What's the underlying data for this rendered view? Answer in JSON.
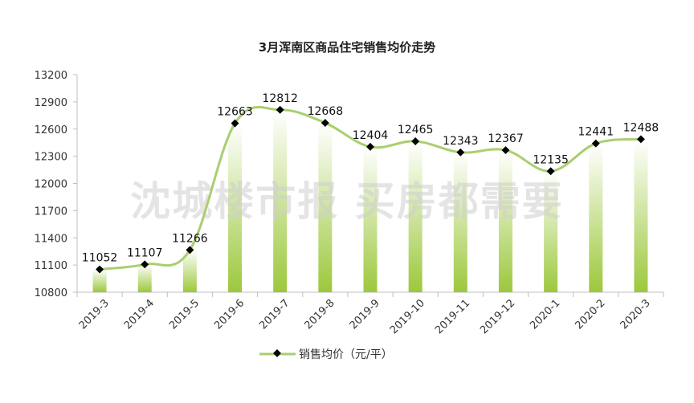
{
  "chart_data": {
    "type": "line",
    "title": "3月浑南区商品住宅销售均价走势",
    "categories": [
      "2019-3",
      "2019-4",
      "2019-5",
      "2019-6",
      "2019-7",
      "2019-8",
      "2019-9",
      "2019-10",
      "2019-11",
      "2019-12",
      "2020-1",
      "2020-2",
      "2020-3"
    ],
    "series": [
      {
        "name": "销售均价（元/平）",
        "values": [
          11052,
          11107,
          11266,
          12663,
          12812,
          12668,
          12404,
          12465,
          12343,
          12367,
          12135,
          12441,
          12488
        ]
      }
    ],
    "ylim": [
      10800,
      13200
    ],
    "yticks": [
      10800,
      11100,
      11400,
      11700,
      12000,
      12300,
      12600,
      12900,
      13200
    ],
    "legend_position": "bottom",
    "grid": false,
    "line_color": "#a9cf6e",
    "bar_gradient_top": "#ffffff",
    "bar_gradient_bottom": "#9cc83c",
    "marker_color": "#000000"
  },
  "watermark": "沈城楼市报 买房都需要"
}
